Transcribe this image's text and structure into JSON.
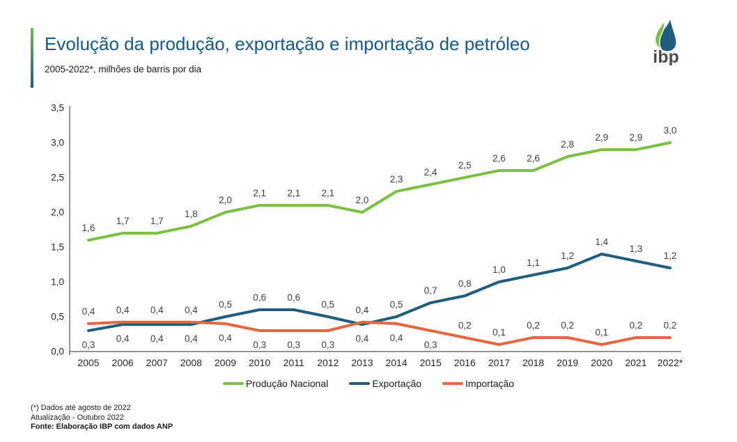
{
  "header": {
    "logo_text": "ibp"
  },
  "chart_data": {
    "type": "line",
    "title": "Evolução da produção, exportação e importação de petróleo",
    "subtitle": "2005-2022*, milhões de barris por dia",
    "categories": [
      "2005",
      "2006",
      "2007",
      "2008",
      "2009",
      "2010",
      "2011",
      "2012",
      "2013",
      "2014",
      "2015",
      "2016",
      "2017",
      "2018",
      "2019",
      "2020",
      "2021",
      "2022*"
    ],
    "series": [
      {
        "name": "Produção Nacional",
        "color": "#7AC143",
        "values": [
          1.6,
          1.7,
          1.7,
          1.8,
          2.0,
          2.1,
          2.1,
          2.1,
          2.0,
          2.3,
          2.4,
          2.5,
          2.6,
          2.6,
          2.8,
          2.9,
          2.9,
          3.0
        ]
      },
      {
        "name": "Exportação",
        "color": "#1F5C7D",
        "values": [
          0.3,
          0.4,
          0.4,
          0.4,
          0.5,
          0.6,
          0.6,
          0.5,
          0.4,
          0.5,
          0.7,
          0.8,
          1.0,
          1.1,
          1.2,
          1.4,
          1.3,
          1.2
        ]
      },
      {
        "name": "Importação",
        "color": "#E8663F",
        "values": [
          0.4,
          0.4,
          0.4,
          0.4,
          0.4,
          0.3,
          0.3,
          0.3,
          0.4,
          0.4,
          0.3,
          0.2,
          0.1,
          0.2,
          0.2,
          0.1,
          0.2,
          0.2
        ]
      }
    ],
    "ylim": [
      0,
      3.5
    ],
    "ytick_step": 0.5,
    "ytick_labels": [
      "0,0",
      "0,5",
      "1,0",
      "1,5",
      "2,0",
      "2,5",
      "3,0",
      "3,5"
    ],
    "grid": false,
    "legend_position": "bottom",
    "decimal_separator": ","
  },
  "footer": {
    "line1": "(*) Dados até agosto de 2022",
    "line2": "Atualização - Outubro 2022",
    "line3": "Fonte: Elaboração IBP com dados ANP"
  },
  "colors": {
    "title_blue": "#12598C",
    "accent_green": "#6CBE45",
    "accent_blue": "#1F5C7D",
    "axis_gray": "#595959",
    "label_gray": "#3F3F3F"
  }
}
